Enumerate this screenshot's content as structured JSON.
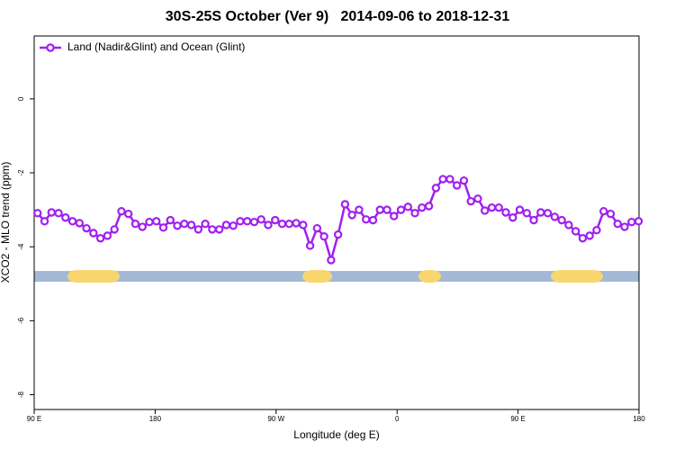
{
  "chart_data": {
    "type": "line",
    "title": "30S-25S October (Ver 9)   2014-09-06 to 2018-12-31",
    "x_label": "Longitude (deg E)",
    "y_label": "XCO2 - MLO trend (ppm)",
    "xlim": [
      90,
      540
    ],
    "ylim": [
      -8.4,
      1.7
    ],
    "xticks": [
      {
        "value": 90,
        "label": "90 E"
      },
      {
        "value": 180,
        "label": "180"
      },
      {
        "value": 270,
        "label": "90 W"
      },
      {
        "value": 360,
        "label": "0"
      },
      {
        "value": 450,
        "label": "90 E"
      },
      {
        "value": 540,
        "label": "180"
      }
    ],
    "yticks": [
      -8,
      -6,
      -4,
      -2,
      0
    ],
    "legend": "top-left",
    "x": [
      92.5,
      97.7,
      102.9,
      108.1,
      113.3,
      118.5,
      123.7,
      128.9,
      134.1,
      139.3,
      144.5,
      149.7,
      154.9,
      160.1,
      165.3,
      170.5,
      175.7,
      180.9,
      186.1,
      191.3,
      196.5,
      201.7,
      206.9,
      212.1,
      217.3,
      222.5,
      227.7,
      232.9,
      238.1,
      243.3,
      248.5,
      253.7,
      258.9,
      264.1,
      269.3,
      274.5,
      279.7,
      284.9,
      290.1,
      295.3,
      300.5,
      305.7,
      310.9,
      316.1,
      321.3,
      326.5,
      331.7,
      336.9,
      342.1,
      347.3,
      352.5,
      357.7,
      362.9,
      368.1,
      373.3,
      378.5,
      383.7,
      388.9,
      394.1,
      399.3,
      404.5,
      409.7,
      414.9,
      420.1,
      425.3,
      430.5,
      435.7,
      440.9,
      446.1,
      451.3,
      456.5,
      461.7,
      466.9,
      472.1,
      477.3,
      482.5,
      487.7,
      492.9,
      498.1,
      503.3,
      508.5,
      513.7,
      518.9,
      524.1,
      529.3,
      534.5,
      539.7
    ],
    "series": [
      {
        "name": "Land (Nadir&Glint) and Ocean (Glint)",
        "color": "#a020f0",
        "values": [
          -3.09,
          -3.31,
          -3.07,
          -3.09,
          -3.21,
          -3.31,
          -3.36,
          -3.5,
          -3.63,
          -3.77,
          -3.7,
          -3.53,
          -3.04,
          -3.11,
          -3.38,
          -3.46,
          -3.33,
          -3.31,
          -3.48,
          -3.28,
          -3.43,
          -3.38,
          -3.41,
          -3.53,
          -3.38,
          -3.53,
          -3.53,
          -3.41,
          -3.43,
          -3.31,
          -3.31,
          -3.33,
          -3.26,
          -3.41,
          -3.28,
          -3.38,
          -3.38,
          -3.36,
          -3.41,
          -3.97,
          -3.5,
          -3.72,
          -4.36,
          -3.67,
          -2.85,
          -3.14,
          -3.0,
          -3.26,
          -3.28,
          -3.0,
          -3.0,
          -3.17,
          -3.0,
          -2.92,
          -3.09,
          -2.94,
          -2.9,
          -2.41,
          -2.17,
          -2.17,
          -2.34,
          -2.21,
          -2.77,
          -2.7,
          -3.02,
          -2.94,
          -2.94,
          -3.07,
          -3.21,
          -3.0,
          -3.09,
          -3.28,
          -3.07,
          -3.09,
          -3.19,
          -3.28,
          -3.41,
          -3.58,
          -3.77,
          -3.7,
          -3.55,
          -3.04,
          -3.11,
          -3.38,
          -3.46,
          -3.33,
          -3.31
        ]
      }
    ],
    "surface_band_y": -4.8,
    "ocean_color": "#a3b8d4",
    "land_color": "#f9d56e",
    "land_segments": [
      [
        114.8,
        153.6
      ],
      [
        289.6,
        311.7
      ],
      [
        375.9,
        392.7
      ],
      [
        474.4,
        513.2
      ]
    ]
  }
}
